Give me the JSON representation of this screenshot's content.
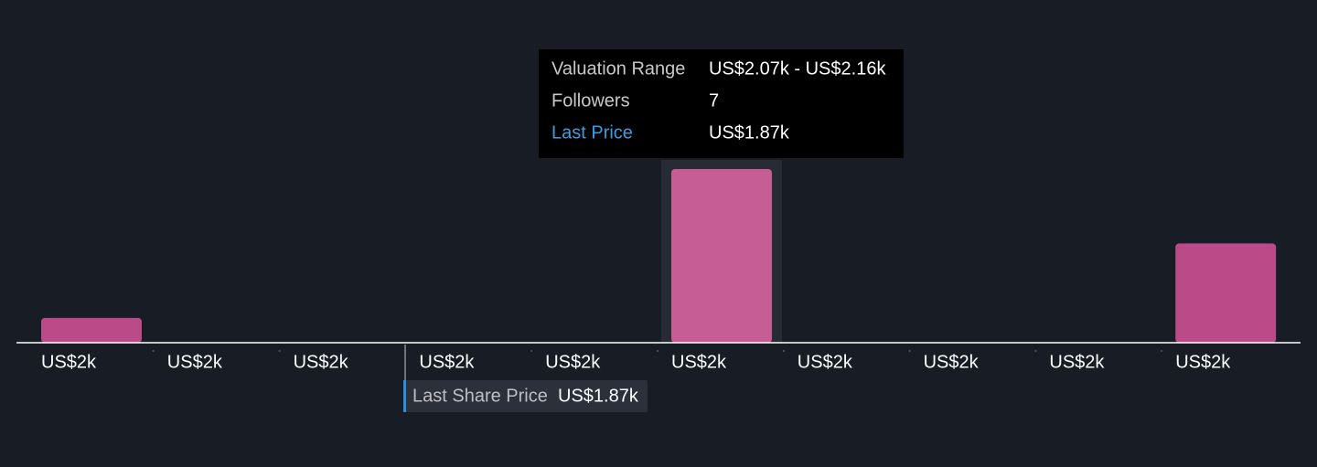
{
  "chart_data": {
    "type": "bar",
    "categories": [
      "US$2k",
      "US$2k",
      "US$2k",
      "US$2k",
      "US$2k",
      "US$2k",
      "US$2k",
      "US$2k",
      "US$2k",
      "US$2k"
    ],
    "values": [
      1,
      0,
      0,
      0,
      0,
      7,
      0,
      0,
      0,
      4
    ],
    "color": "#bb4a89",
    "highlight_color": "#c65d95",
    "highlight_index": 5,
    "tooltip": {
      "range_label": "Valuation Range",
      "range": "US$2.07k - US$2.16k",
      "followers_label": "Followers",
      "price_label": "Last Price",
      "price": "US$1.87k"
    },
    "annotation": {
      "label": "Last Share Price",
      "value": "US$1.87k"
    }
  }
}
